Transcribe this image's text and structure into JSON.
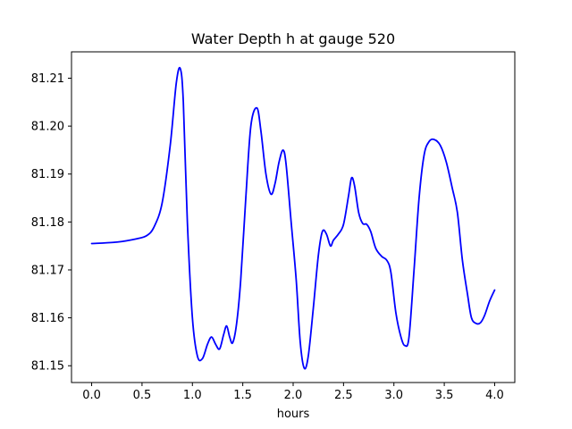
{
  "chart_data": {
    "type": "line",
    "title": "Water Depth h at gauge 520",
    "xlabel": "hours",
    "ylabel": "",
    "xlim": [
      -0.2,
      4.2
    ],
    "ylim": [
      81.1465,
      81.2155
    ],
    "grid": false,
    "x_ticks": [
      "0.0",
      "0.5",
      "1.0",
      "1.5",
      "2.0",
      "2.5",
      "3.0",
      "3.5",
      "4.0"
    ],
    "y_ticks": [
      "81.15",
      "81.16",
      "81.17",
      "81.18",
      "81.19",
      "81.20",
      "81.21"
    ],
    "series": [
      {
        "color": "#0000ff",
        "points": [
          [
            0.0,
            81.1755
          ],
          [
            0.25,
            81.1758
          ],
          [
            0.45,
            81.1765
          ],
          [
            0.55,
            81.1772
          ],
          [
            0.62,
            81.179
          ],
          [
            0.7,
            81.184
          ],
          [
            0.78,
            81.196
          ],
          [
            0.84,
            81.209
          ],
          [
            0.88,
            81.212
          ],
          [
            0.91,
            81.205
          ],
          [
            0.95,
            81.18
          ],
          [
            1.0,
            81.16
          ],
          [
            1.05,
            81.152
          ],
          [
            1.1,
            81.1515
          ],
          [
            1.15,
            81.1545
          ],
          [
            1.19,
            81.156
          ],
          [
            1.23,
            81.1545
          ],
          [
            1.27,
            81.1535
          ],
          [
            1.31,
            81.1565
          ],
          [
            1.34,
            81.1583
          ],
          [
            1.37,
            81.156
          ],
          [
            1.4,
            81.1548
          ],
          [
            1.44,
            81.159
          ],
          [
            1.48,
            81.168
          ],
          [
            1.53,
            81.185
          ],
          [
            1.58,
            81.2
          ],
          [
            1.64,
            81.2038
          ],
          [
            1.68,
            81.199
          ],
          [
            1.73,
            81.19
          ],
          [
            1.78,
            81.1858
          ],
          [
            1.82,
            81.188
          ],
          [
            1.86,
            81.1925
          ],
          [
            1.9,
            81.195
          ],
          [
            1.93,
            81.192
          ],
          [
            1.98,
            81.18
          ],
          [
            2.03,
            81.168
          ],
          [
            2.07,
            81.155
          ],
          [
            2.11,
            81.1495
          ],
          [
            2.15,
            81.152
          ],
          [
            2.2,
            81.162
          ],
          [
            2.25,
            81.173
          ],
          [
            2.29,
            81.178
          ],
          [
            2.33,
            81.1775
          ],
          [
            2.37,
            81.175
          ],
          [
            2.4,
            81.1762
          ],
          [
            2.45,
            81.1775
          ],
          [
            2.5,
            81.1795
          ],
          [
            2.55,
            81.1855
          ],
          [
            2.58,
            81.1892
          ],
          [
            2.61,
            81.1875
          ],
          [
            2.65,
            81.182
          ],
          [
            2.69,
            81.1797
          ],
          [
            2.73,
            81.1795
          ],
          [
            2.77,
            81.178
          ],
          [
            2.82,
            81.1745
          ],
          [
            2.88,
            81.1728
          ],
          [
            2.93,
            81.172
          ],
          [
            2.97,
            81.1695
          ],
          [
            3.02,
            81.161
          ],
          [
            3.07,
            81.156
          ],
          [
            3.11,
            81.1542
          ],
          [
            3.15,
            81.156
          ],
          [
            3.2,
            81.17
          ],
          [
            3.25,
            81.185
          ],
          [
            3.3,
            81.194
          ],
          [
            3.35,
            81.1968
          ],
          [
            3.4,
            81.1972
          ],
          [
            3.46,
            81.196
          ],
          [
            3.52,
            81.1925
          ],
          [
            3.58,
            81.187
          ],
          [
            3.63,
            81.182
          ],
          [
            3.68,
            81.172
          ],
          [
            3.73,
            81.165
          ],
          [
            3.77,
            81.16
          ],
          [
            3.82,
            81.1588
          ],
          [
            3.86,
            81.159
          ],
          [
            3.9,
            81.1605
          ],
          [
            3.95,
            81.1635
          ],
          [
            4.0,
            81.1658
          ]
        ]
      }
    ]
  }
}
